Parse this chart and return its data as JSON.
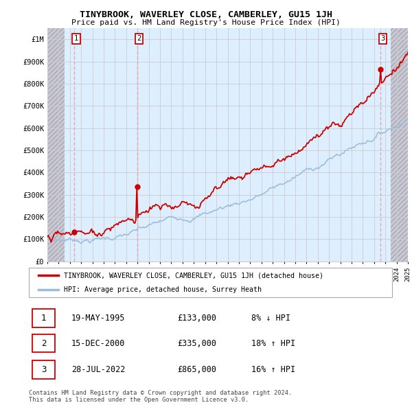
{
  "title": "TINYBROOK, WAVERLEY CLOSE, CAMBERLEY, GU15 1JH",
  "subtitle": "Price paid vs. HM Land Registry's House Price Index (HPI)",
  "sale_years_float": [
    1995.38,
    2000.96,
    2022.57
  ],
  "sale_prices": [
    133000,
    335000,
    865000
  ],
  "sale_labels": [
    "1",
    "2",
    "3"
  ],
  "red_line_color": "#cc0000",
  "blue_line_color": "#99bbdd",
  "legend_entries": [
    "TINYBROOK, WAVERLEY CLOSE, CAMBERLEY, GU15 1JH (detached house)",
    "HPI: Average price, detached house, Surrey Heath"
  ],
  "table_data": [
    [
      "1",
      "19-MAY-1995",
      "£133,000",
      "8% ↓ HPI"
    ],
    [
      "2",
      "15-DEC-2000",
      "£335,000",
      "18% ↑ HPI"
    ],
    [
      "3",
      "28-JUL-2022",
      "£865,000",
      "16% ↑ HPI"
    ]
  ],
  "footer": "Contains HM Land Registry data © Crown copyright and database right 2024.\nThis data is licensed under the Open Government Licence v3.0.",
  "xlim": [
    1993,
    2025
  ],
  "ylim": [
    0,
    1050000
  ],
  "yticks": [
    0,
    100000,
    200000,
    300000,
    400000,
    500000,
    600000,
    700000,
    800000,
    900000,
    1000000
  ],
  "ytick_labels": [
    "£0",
    "£100K",
    "£200K",
    "£300K",
    "£400K",
    "£500K",
    "£600K",
    "£700K",
    "£800K",
    "£900K",
    "£1M"
  ],
  "grid_color": "#cccccc",
  "hatch_bg_color": "#d8d8d8",
  "cell_bg_color": "#ddeeff",
  "box_color": "#cc0000",
  "fig_width": 6.0,
  "fig_height": 5.9
}
